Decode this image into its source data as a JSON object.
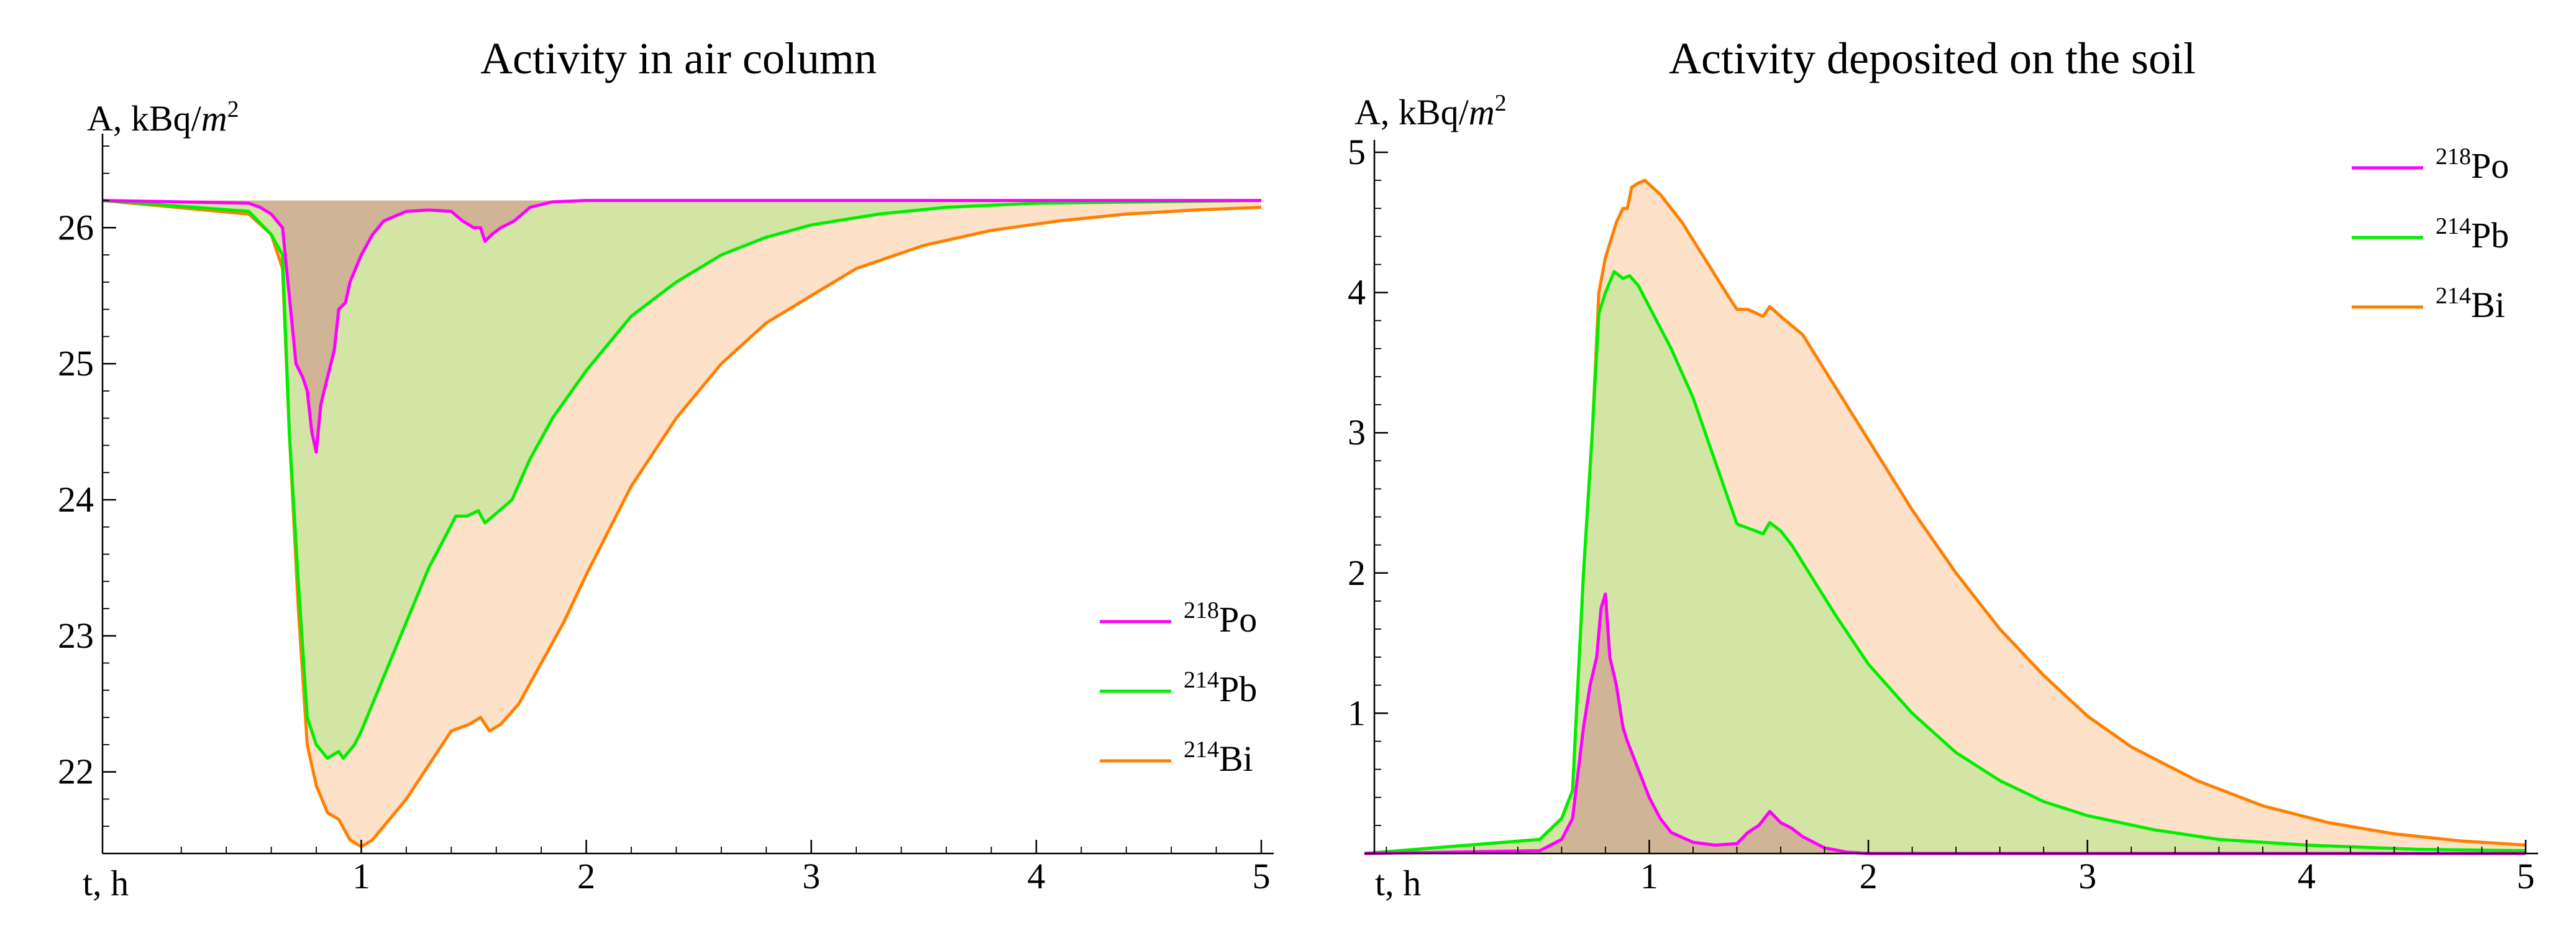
{
  "colors": {
    "po": "#ff00ff",
    "pb": "#00ee00",
    "bi": "#ff8000",
    "po_fill": "#cfb595",
    "pb_fill": "#d3e5a4",
    "bi_fill": "#fde1c8",
    "axis": "#000000"
  },
  "legend": [
    {
      "key": "po",
      "sup": "218",
      "name": "Po"
    },
    {
      "key": "pb",
      "sup": "214",
      "name": "Pb"
    },
    {
      "key": "bi",
      "sup": "214",
      "name": "Bi"
    }
  ],
  "chart_data": [
    {
      "type": "area",
      "title": "Activity in air column",
      "ylabel_prefix": "A, kBq/",
      "ylabel_unit": "m",
      "ylabel_exp": "2",
      "xlabel": "t, h",
      "xlim": [
        -0.15,
        5.0
      ],
      "ylim": [
        21.4,
        26.6
      ],
      "baseline": 26.2,
      "xticks": [
        "1",
        "2",
        "3",
        "4",
        "5"
      ],
      "yticks": [
        "22",
        "23",
        "24",
        "25",
        "26"
      ],
      "legend_position": "center-right",
      "series": [
        {
          "key": "bi",
          "name": "214Bi",
          "points": [
            [
              -0.15,
              26.2
            ],
            [
              0.5,
              26.1
            ],
            [
              0.6,
              25.95
            ],
            [
              0.65,
              25.7
            ],
            [
              0.68,
              24.5
            ],
            [
              0.72,
              23.2
            ],
            [
              0.76,
              22.2
            ],
            [
              0.8,
              21.9
            ],
            [
              0.85,
              21.7
            ],
            [
              0.9,
              21.65
            ],
            [
              0.95,
              21.5
            ],
            [
              1.0,
              21.45
            ],
            [
              1.05,
              21.5
            ],
            [
              1.1,
              21.6
            ],
            [
              1.2,
              21.8
            ],
            [
              1.3,
              22.05
            ],
            [
              1.4,
              22.3
            ],
            [
              1.48,
              22.35
            ],
            [
              1.53,
              22.4
            ],
            [
              1.57,
              22.3
            ],
            [
              1.62,
              22.35
            ],
            [
              1.7,
              22.5
            ],
            [
              1.8,
              22.8
            ],
            [
              1.9,
              23.1
            ],
            [
              2.0,
              23.45
            ],
            [
              2.2,
              24.1
            ],
            [
              2.4,
              24.6
            ],
            [
              2.6,
              25.0
            ],
            [
              2.8,
              25.3
            ],
            [
              3.0,
              25.5
            ],
            [
              3.2,
              25.7
            ],
            [
              3.5,
              25.87
            ],
            [
              3.8,
              25.98
            ],
            [
              4.1,
              26.05
            ],
            [
              4.4,
              26.1
            ],
            [
              4.7,
              26.13
            ],
            [
              5.0,
              26.15
            ]
          ]
        },
        {
          "key": "pb",
          "name": "214Pb",
          "points": [
            [
              -0.15,
              26.2
            ],
            [
              0.5,
              26.12
            ],
            [
              0.6,
              25.95
            ],
            [
              0.65,
              25.8
            ],
            [
              0.68,
              24.5
            ],
            [
              0.72,
              23.4
            ],
            [
              0.76,
              22.4
            ],
            [
              0.8,
              22.2
            ],
            [
              0.85,
              22.1
            ],
            [
              0.9,
              22.15
            ],
            [
              0.92,
              22.1
            ],
            [
              0.97,
              22.2
            ],
            [
              1.0,
              22.3
            ],
            [
              1.1,
              22.7
            ],
            [
              1.2,
              23.1
            ],
            [
              1.3,
              23.5
            ],
            [
              1.38,
              23.75
            ],
            [
              1.42,
              23.88
            ],
            [
              1.47,
              23.88
            ],
            [
              1.52,
              23.92
            ],
            [
              1.55,
              23.83
            ],
            [
              1.6,
              23.9
            ],
            [
              1.67,
              24.0
            ],
            [
              1.75,
              24.3
            ],
            [
              1.85,
              24.6
            ],
            [
              2.0,
              24.95
            ],
            [
              2.2,
              25.35
            ],
            [
              2.4,
              25.6
            ],
            [
              2.6,
              25.8
            ],
            [
              2.8,
              25.93
            ],
            [
              3.0,
              26.02
            ],
            [
              3.3,
              26.1
            ],
            [
              3.6,
              26.15
            ],
            [
              4.0,
              26.18
            ],
            [
              4.5,
              26.19
            ],
            [
              5.0,
              26.2
            ]
          ]
        },
        {
          "key": "po",
          "name": "218Po",
          "points": [
            [
              -0.15,
              26.2
            ],
            [
              0.5,
              26.18
            ],
            [
              0.55,
              26.15
            ],
            [
              0.6,
              26.1
            ],
            [
              0.65,
              26.0
            ],
            [
              0.68,
              25.5
            ],
            [
              0.71,
              25.0
            ],
            [
              0.74,
              24.9
            ],
            [
              0.76,
              24.8
            ],
            [
              0.78,
              24.5
            ],
            [
              0.8,
              24.35
            ],
            [
              0.82,
              24.7
            ],
            [
              0.85,
              24.9
            ],
            [
              0.88,
              25.1
            ],
            [
              0.9,
              25.4
            ],
            [
              0.93,
              25.45
            ],
            [
              0.95,
              25.6
            ],
            [
              1.0,
              25.8
            ],
            [
              1.05,
              25.95
            ],
            [
              1.1,
              26.05
            ],
            [
              1.2,
              26.12
            ],
            [
              1.3,
              26.13
            ],
            [
              1.4,
              26.12
            ],
            [
              1.45,
              26.05
            ],
            [
              1.5,
              26.0
            ],
            [
              1.53,
              26.0
            ],
            [
              1.55,
              25.9
            ],
            [
              1.58,
              25.95
            ],
            [
              1.62,
              26.0
            ],
            [
              1.68,
              26.05
            ],
            [
              1.75,
              26.15
            ],
            [
              1.85,
              26.19
            ],
            [
              2.0,
              26.2
            ],
            [
              5.0,
              26.2
            ]
          ]
        }
      ]
    },
    {
      "type": "area",
      "title": "Activity deposited on the soil",
      "ylabel_prefix": "A, kBq/",
      "ylabel_unit": "m",
      "ylabel_exp": "2",
      "xlabel": "t, h",
      "xlim": [
        -0.3,
        5.0
      ],
      "ylim": [
        0,
        5.0
      ],
      "baseline": 0,
      "xticks": [
        "1",
        "2",
        "3",
        "4",
        "5"
      ],
      "yticks": [
        "1",
        "2",
        "3",
        "4",
        "5"
      ],
      "legend_position": "top-right",
      "series": [
        {
          "key": "bi",
          "name": "214Bi",
          "points": [
            [
              -0.3,
              0
            ],
            [
              0.5,
              0.1
            ],
            [
              0.6,
              0.25
            ],
            [
              0.65,
              0.45
            ],
            [
              0.7,
              2.0
            ],
            [
              0.74,
              3.0
            ],
            [
              0.77,
              4.0
            ],
            [
              0.8,
              4.25
            ],
            [
              0.85,
              4.5
            ],
            [
              0.88,
              4.6
            ],
            [
              0.9,
              4.6
            ],
            [
              0.92,
              4.75
            ],
            [
              0.95,
              4.78
            ],
            [
              0.98,
              4.8
            ],
            [
              1.05,
              4.7
            ],
            [
              1.15,
              4.5
            ],
            [
              1.25,
              4.25
            ],
            [
              1.35,
              4.0
            ],
            [
              1.4,
              3.88
            ],
            [
              1.45,
              3.88
            ],
            [
              1.52,
              3.83
            ],
            [
              1.55,
              3.9
            ],
            [
              1.6,
              3.83
            ],
            [
              1.7,
              3.7
            ],
            [
              1.8,
              3.45
            ],
            [
              1.9,
              3.2
            ],
            [
              2.0,
              2.95
            ],
            [
              2.2,
              2.45
            ],
            [
              2.4,
              2.0
            ],
            [
              2.6,
              1.6
            ],
            [
              2.8,
              1.27
            ],
            [
              3.0,
              0.98
            ],
            [
              3.2,
              0.76
            ],
            [
              3.5,
              0.52
            ],
            [
              3.8,
              0.34
            ],
            [
              4.1,
              0.22
            ],
            [
              4.4,
              0.14
            ],
            [
              4.7,
              0.09
            ],
            [
              5.0,
              0.06
            ]
          ]
        },
        {
          "key": "pb",
          "name": "214Pb",
          "points": [
            [
              -0.3,
              0
            ],
            [
              0.5,
              0.1
            ],
            [
              0.6,
              0.25
            ],
            [
              0.65,
              0.45
            ],
            [
              0.7,
              2.0
            ],
            [
              0.74,
              3.0
            ],
            [
              0.77,
              3.85
            ],
            [
              0.8,
              4.0
            ],
            [
              0.84,
              4.15
            ],
            [
              0.88,
              4.1
            ],
            [
              0.91,
              4.12
            ],
            [
              0.95,
              4.05
            ],
            [
              1.0,
              3.9
            ],
            [
              1.1,
              3.6
            ],
            [
              1.2,
              3.25
            ],
            [
              1.3,
              2.8
            ],
            [
              1.4,
              2.35
            ],
            [
              1.45,
              2.32
            ],
            [
              1.52,
              2.28
            ],
            [
              1.55,
              2.36
            ],
            [
              1.6,
              2.3
            ],
            [
              1.65,
              2.2
            ],
            [
              1.75,
              1.95
            ],
            [
              1.85,
              1.7
            ],
            [
              2.0,
              1.35
            ],
            [
              2.2,
              1.0
            ],
            [
              2.4,
              0.72
            ],
            [
              2.6,
              0.52
            ],
            [
              2.8,
              0.37
            ],
            [
              3.0,
              0.27
            ],
            [
              3.3,
              0.17
            ],
            [
              3.6,
              0.1
            ],
            [
              4.0,
              0.06
            ],
            [
              4.5,
              0.03
            ],
            [
              5.0,
              0.02
            ]
          ]
        },
        {
          "key": "po",
          "name": "218Po",
          "points": [
            [
              -0.3,
              0
            ],
            [
              0.5,
              0.02
            ],
            [
              0.6,
              0.1
            ],
            [
              0.65,
              0.25
            ],
            [
              0.7,
              0.9
            ],
            [
              0.73,
              1.2
            ],
            [
              0.76,
              1.4
            ],
            [
              0.78,
              1.75
            ],
            [
              0.8,
              1.85
            ],
            [
              0.82,
              1.4
            ],
            [
              0.85,
              1.2
            ],
            [
              0.88,
              0.9
            ],
            [
              0.9,
              0.8
            ],
            [
              0.95,
              0.6
            ],
            [
              1.0,
              0.4
            ],
            [
              1.05,
              0.25
            ],
            [
              1.1,
              0.15
            ],
            [
              1.2,
              0.08
            ],
            [
              1.3,
              0.06
            ],
            [
              1.4,
              0.07
            ],
            [
              1.45,
              0.15
            ],
            [
              1.5,
              0.2
            ],
            [
              1.55,
              0.3
            ],
            [
              1.6,
              0.22
            ],
            [
              1.65,
              0.18
            ],
            [
              1.7,
              0.12
            ],
            [
              1.8,
              0.04
            ],
            [
              1.9,
              0.01
            ],
            [
              2.0,
              0
            ],
            [
              5.0,
              0
            ]
          ]
        }
      ]
    }
  ]
}
